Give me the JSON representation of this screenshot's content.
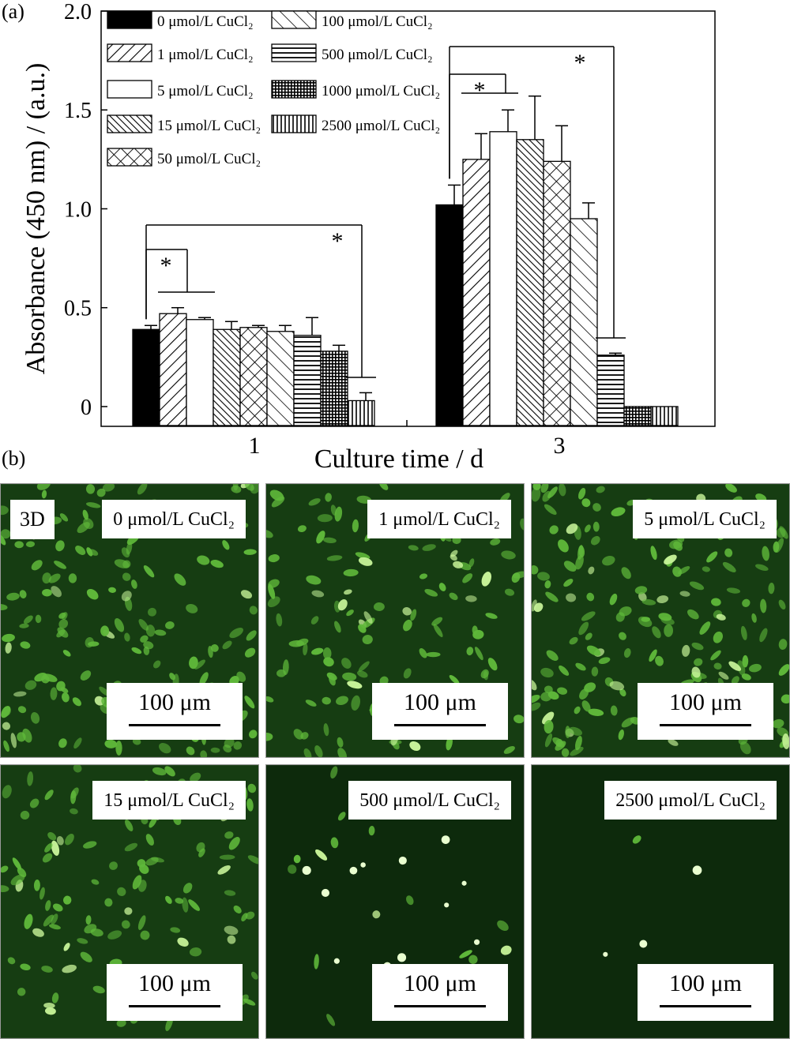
{
  "panel_a_label": "(a)",
  "panel_b_label": "(b)",
  "chart_data": {
    "type": "bar",
    "xlabel": "Culture time / d",
    "ylabel": "Absorbance (450 nm) / (a.u.)",
    "ylim": [
      -0.1,
      2.0
    ],
    "yticks": [
      0,
      0.5,
      1.0,
      1.5,
      2.0
    ],
    "ytick_labels": [
      "0",
      "0.5",
      "1.0",
      "1.5",
      "2.0"
    ],
    "categories": [
      "1",
      "3"
    ],
    "legend_placement": "top-left",
    "series": [
      {
        "name": "0 μmol/L CuCl₂",
        "pattern": "solid",
        "values": [
          0.39,
          1.02
        ],
        "errors": [
          0.02,
          0.1
        ]
      },
      {
        "name": "1 μmol/L CuCl₂",
        "pattern": "diag-up",
        "values": [
          0.47,
          1.25
        ],
        "errors": [
          0.03,
          0.13
        ]
      },
      {
        "name": "5 μmol/L CuCl₂",
        "pattern": "empty",
        "values": [
          0.44,
          1.39
        ],
        "errors": [
          0.01,
          0.11
        ]
      },
      {
        "name": "15 μmol/L CuCl₂",
        "pattern": "diag-dense",
        "values": [
          0.39,
          1.35
        ],
        "errors": [
          0.04,
          0.22
        ]
      },
      {
        "name": "50 μmol/L CuCl₂",
        "pattern": "cross",
        "values": [
          0.4,
          1.24
        ],
        "errors": [
          0.01,
          0.18
        ]
      },
      {
        "name": "100 μmol/L CuCl₂",
        "pattern": "diag-down",
        "values": [
          0.38,
          0.95
        ],
        "errors": [
          0.03,
          0.08
        ]
      },
      {
        "name": "500 μmol/L CuCl₂",
        "pattern": "horizontal",
        "values": [
          0.36,
          0.26
        ],
        "errors": [
          0.09,
          0.01
        ]
      },
      {
        "name": "1000 μmol/L CuCl₂",
        "pattern": "grid",
        "values": [
          0.28,
          0.0
        ],
        "errors": [
          0.03,
          0.0
        ]
      },
      {
        "name": "2500 μmol/L CuCl₂",
        "pattern": "vertical",
        "values": [
          0.03,
          0.0
        ],
        "errors": [
          0.04,
          0.0
        ]
      }
    ],
    "significance": [
      {
        "group": "1",
        "from_series": 0,
        "to_series": [
          1,
          2
        ],
        "label": "*"
      },
      {
        "group": "1",
        "from_series": 0,
        "to_series": [
          8
        ],
        "label": "*"
      },
      {
        "group": "3",
        "from_series": 0,
        "to_series": [
          1,
          2
        ],
        "label": "*"
      },
      {
        "group": "3",
        "from_series": 0,
        "to_series": [
          6
        ],
        "label": "*"
      }
    ]
  },
  "images": [
    {
      "label": "0 μmol/L CuCl₂",
      "scale": "100 μm",
      "density": 1.0
    },
    {
      "label": "1 μmol/L CuCl₂",
      "scale": "100 μm",
      "density": 0.8
    },
    {
      "label": "5 μmol/L CuCl₂",
      "scale": "100 μm",
      "density": 1.15
    },
    {
      "label": "15 μmol/L CuCl₂",
      "scale": "100 μm",
      "density": 0.75
    },
    {
      "label": "500 μmol/L CuCl₂",
      "scale": "100 μm",
      "density": 0.1
    },
    {
      "label": "2500 μmol/L CuCl₂",
      "scale": "100 μm",
      "density": 0.01
    }
  ],
  "dimension_label": "3D"
}
